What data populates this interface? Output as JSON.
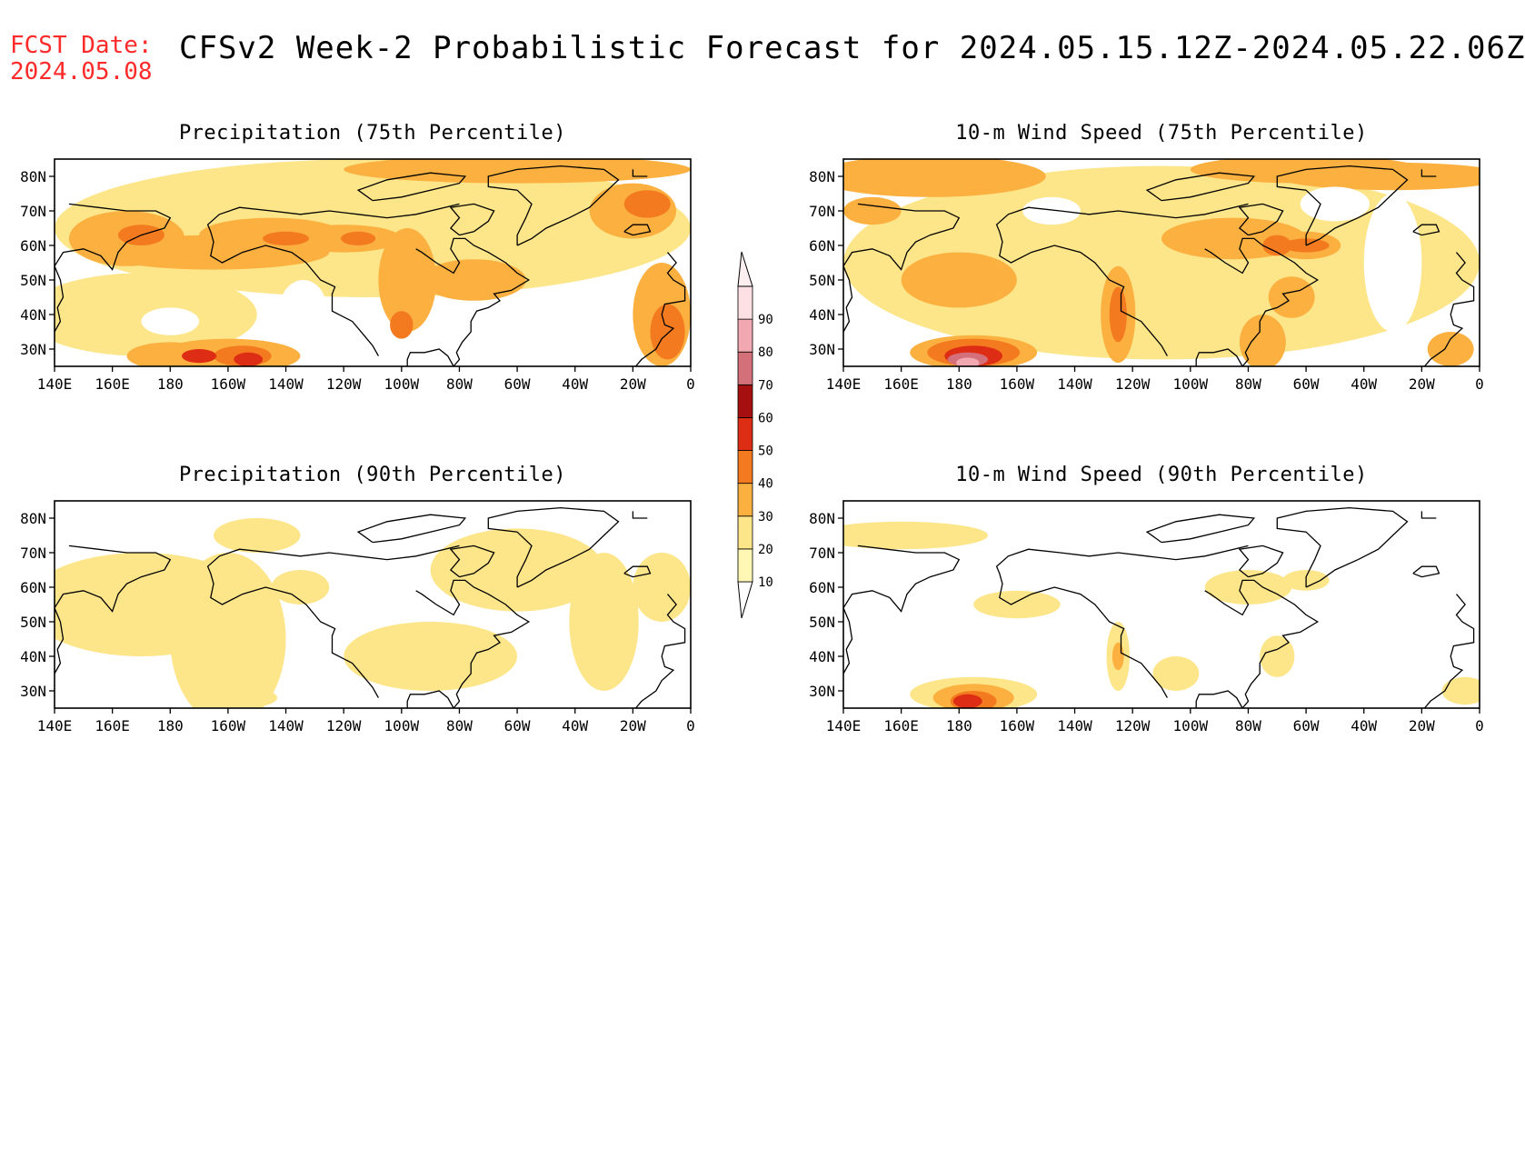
{
  "header": {
    "fcst_label": "FCST Date:",
    "fcst_date": "2024.05.08",
    "title": "CFSv2 Week-2 Probabilistic Forecast for 2024.05.15.12Z-2024.05.22.06Z"
  },
  "axes": {
    "lon_labels": [
      "140E",
      "160E",
      "180",
      "160W",
      "140W",
      "120W",
      "100W",
      "80W",
      "60W",
      "40W",
      "20W",
      "0"
    ],
    "lat_labels": [
      "80N",
      "70N",
      "60N",
      "50N",
      "40N",
      "30N"
    ],
    "lat_values": [
      80,
      70,
      60,
      50,
      40,
      30
    ],
    "lat_range": [
      25,
      85
    ],
    "lon_range": [
      140,
      360
    ]
  },
  "colorbar": {
    "levels": [
      "10",
      "20",
      "30",
      "40",
      "50",
      "60",
      "70",
      "80",
      "90"
    ],
    "colors": [
      "#fff7b3",
      "#fde58a",
      "#fbb040",
      "#f47a1f",
      "#de2d15",
      "#a50f0f",
      "#d4707a",
      "#f2a8b0",
      "#fde0e4"
    ]
  },
  "panels": [
    {
      "title": "Precipitation (75th Percentile)",
      "key": "precip75"
    },
    {
      "title": "10-m Wind Speed (75th Percentile)",
      "key": "wind75"
    },
    {
      "title": "Precipitation (90th Percentile)",
      "key": "precip90"
    },
    {
      "title": "10-m Wind Speed (90th Percentile)",
      "key": "wind90"
    }
  ]
}
